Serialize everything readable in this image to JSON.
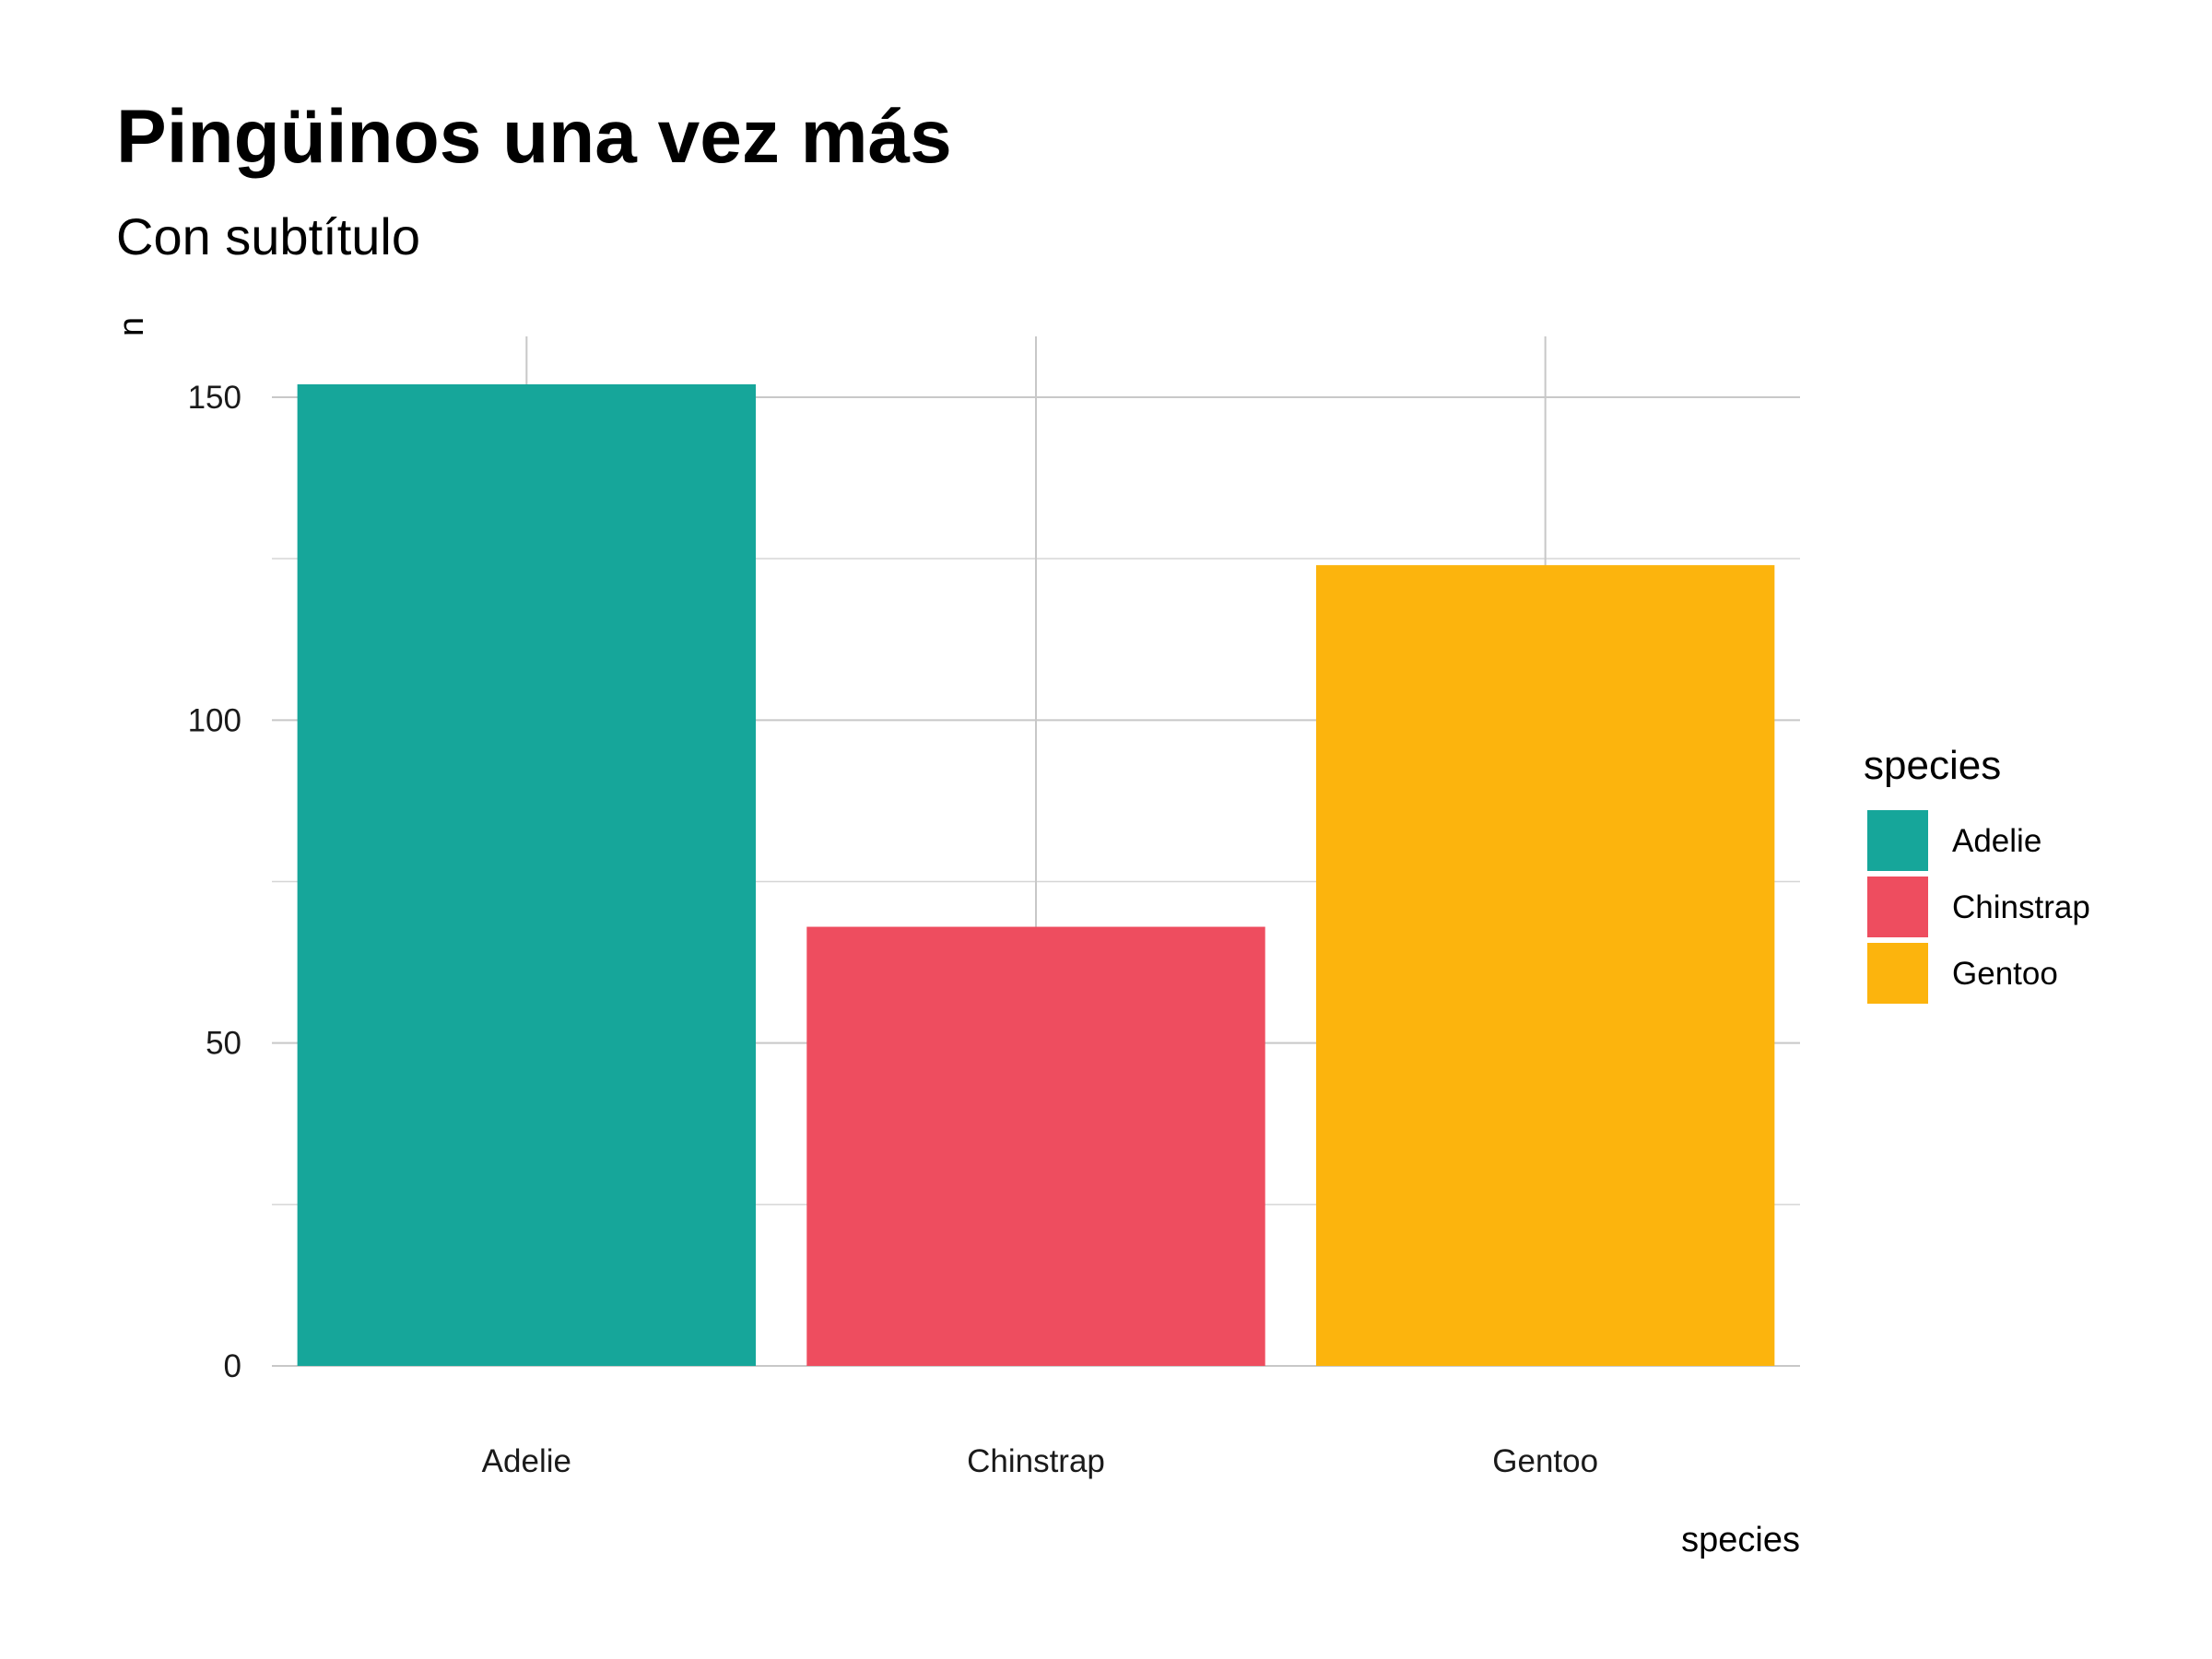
{
  "chart_data": {
    "type": "bar",
    "title": "Pingüinos una vez más",
    "subtitle": "Con subtítulo",
    "xlabel": "species",
    "ylabel": "n",
    "categories": [
      "Adelie",
      "Chinstrap",
      "Gentoo"
    ],
    "values": [
      152,
      68,
      124
    ],
    "colors": [
      "#16a69a",
      "#ee4d5f",
      "#fcb40d"
    ],
    "ylim": [
      0,
      160
    ],
    "yticks": [
      0,
      50,
      100,
      150
    ],
    "yticks_minor": [
      25,
      75,
      125
    ],
    "grid": true,
    "legend": {
      "title": "species",
      "position": "right",
      "items": [
        {
          "label": "Adelie",
          "color": "#16a69a"
        },
        {
          "label": "Chinstrap",
          "color": "#ee4d5f"
        },
        {
          "label": "Gentoo",
          "color": "#fcb40d"
        }
      ]
    }
  }
}
